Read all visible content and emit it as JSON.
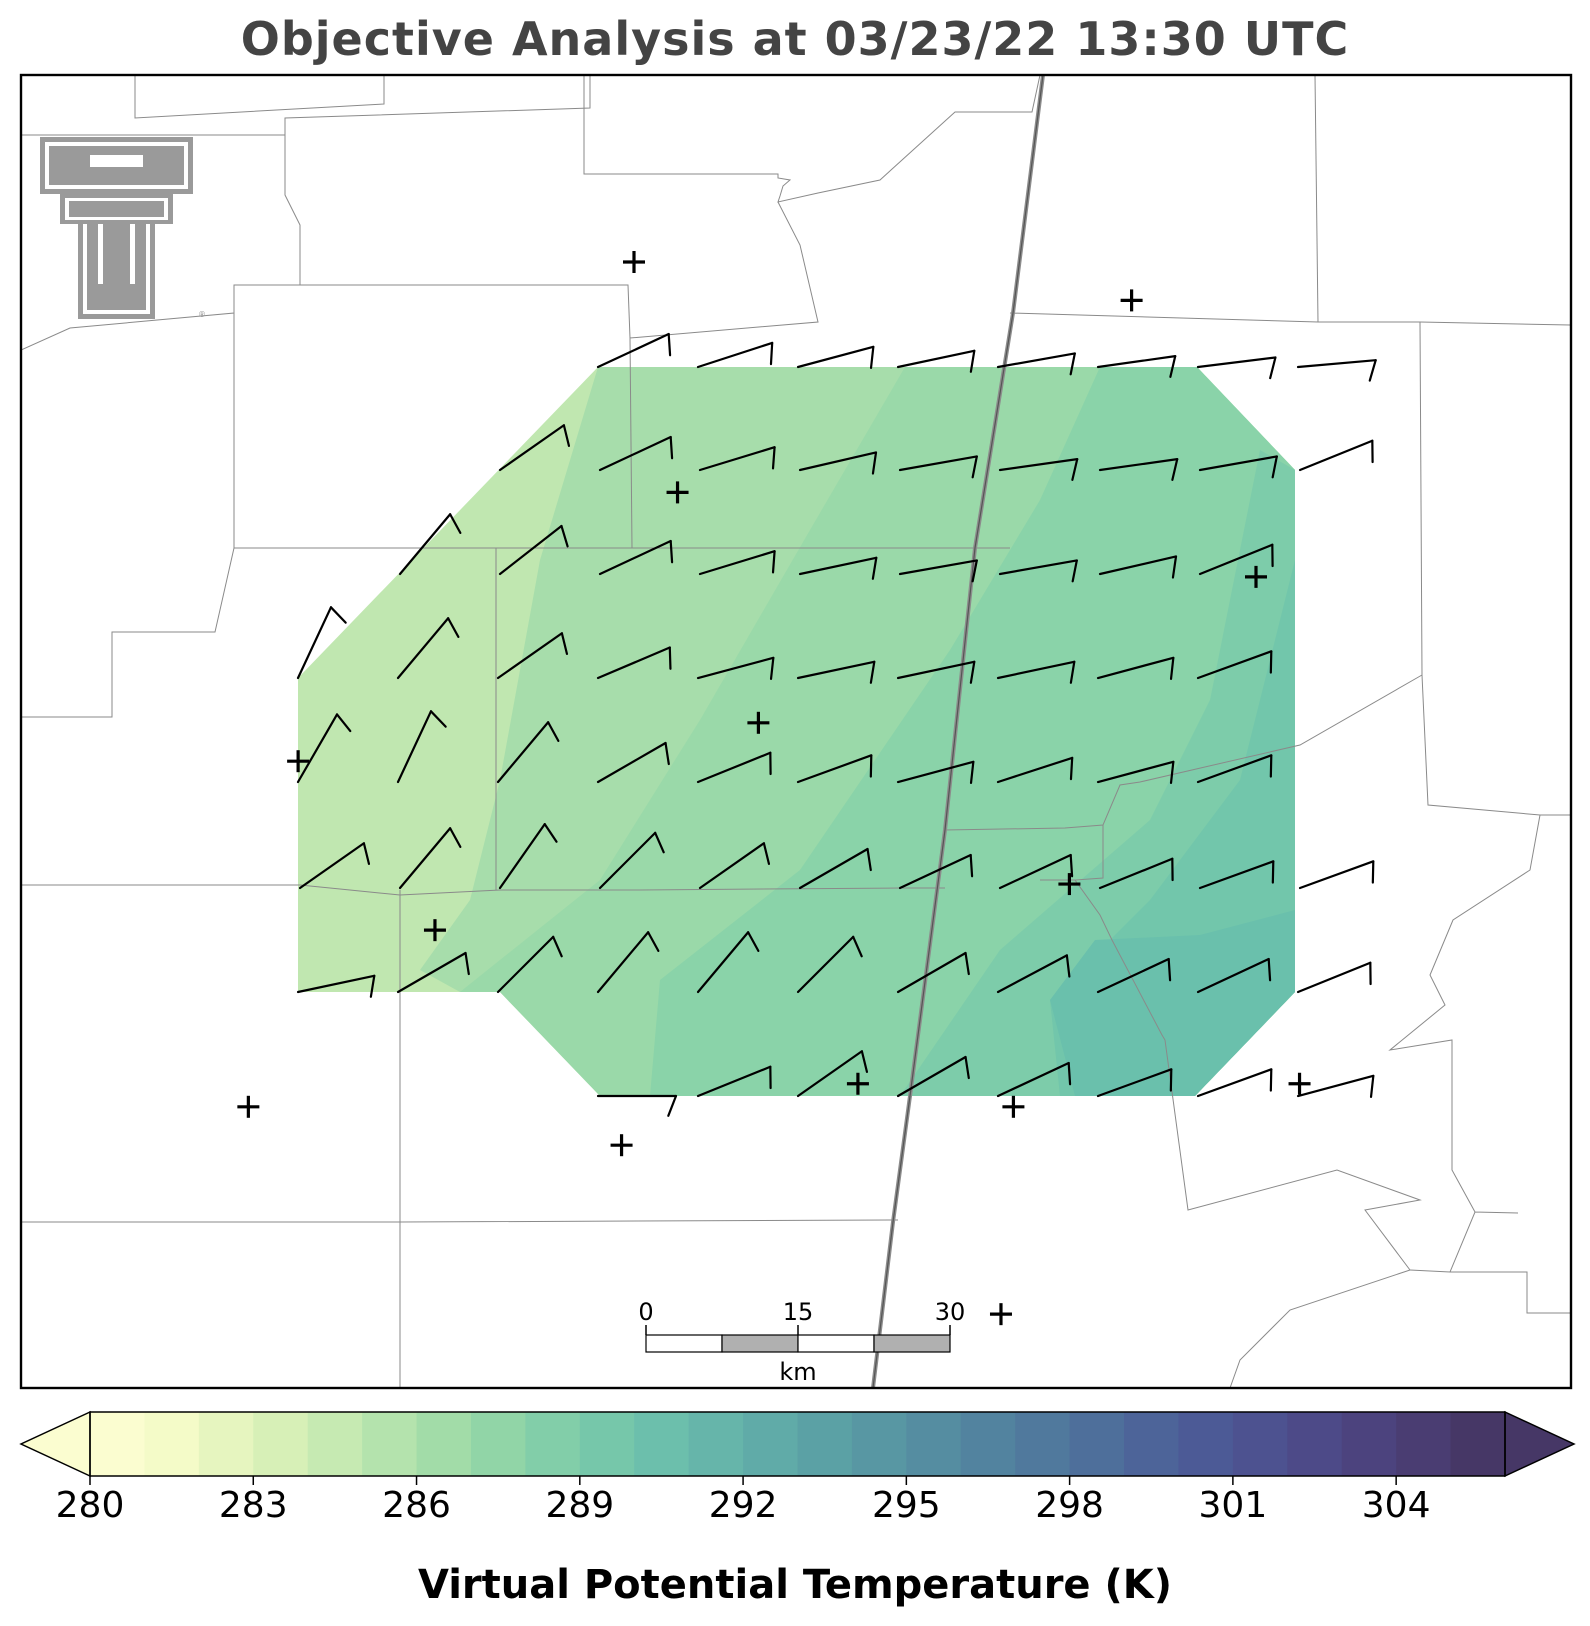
{
  "title": "Objective Analysis at 03/23/22 13:30 UTC",
  "colorbar": {
    "label": "Virtual Potential Temperature (K)",
    "min": 280,
    "max": 306,
    "ticks": [
      280,
      283,
      286,
      289,
      292,
      295,
      298,
      301,
      304
    ],
    "colors": [
      "#fbfdd0",
      "#f4fbc8",
      "#e6f5bf",
      "#d7f0b7",
      "#c6eab2",
      "#b4e3ad",
      "#a2dca8",
      "#91d5a7",
      "#82cea9",
      "#76c7aa",
      "#6cbfac",
      "#66b5aa",
      "#60aba8",
      "#5ba1a5",
      "#5897a3",
      "#558da1",
      "#52839f",
      "#50799d",
      "#4e6f9b",
      "#4d6499",
      "#4c5a96",
      "#4d5290",
      "#4d4a88",
      "#4c437e",
      "#4a3d72",
      "#463766"
    ],
    "extend": "both"
  },
  "scale_bar": {
    "unit": "km",
    "labels": [
      "0",
      "15",
      "30"
    ]
  },
  "logo": {
    "name": "texas-tech-double-t-logo"
  },
  "stations": [
    {
      "lon": -101.8,
      "lat": 35.2
    },
    {
      "lon": -101.0,
      "lat": 35.15
    },
    {
      "lon": -100.8,
      "lat": 34.79
    },
    {
      "lon": -101.73,
      "lat": 34.9
    },
    {
      "lon": -102.34,
      "lat": 34.55
    },
    {
      "lon": -101.6,
      "lat": 34.6
    },
    {
      "lon": -102.12,
      "lat": 34.33
    },
    {
      "lon": -101.1,
      "lat": 34.39
    },
    {
      "lon": -102.42,
      "lat": 34.1
    },
    {
      "lon": -101.44,
      "lat": 34.13
    },
    {
      "lon": -101.82,
      "lat": 34.05
    },
    {
      "lon": -101.19,
      "lat": 34.1
    },
    {
      "lon": -100.73,
      "lat": 34.13
    },
    {
      "lon": -101.21,
      "lat": 33.83
    }
  ],
  "wind_barbs": [
    {
      "row": 0,
      "dirs": [
        245,
        252,
        255,
        258,
        260,
        262,
        263,
        265
      ],
      "speeds": [
        10,
        10,
        10,
        10,
        10,
        10,
        10,
        10
      ]
    },
    {
      "row": 1,
      "dirs": [
        235,
        245,
        253,
        257,
        260,
        262,
        262,
        260,
        248
      ],
      "speeds": [
        10,
        10,
        10,
        10,
        10,
        10,
        10,
        10,
        10
      ]
    },
    {
      "row": 2,
      "dirs": [
        220,
        232,
        245,
        253,
        258,
        260,
        260,
        257,
        248
      ],
      "speeds": [
        10,
        10,
        10,
        10,
        10,
        10,
        10,
        10,
        10
      ]
    },
    {
      "row": 3,
      "dirs": [
        205,
        220,
        235,
        247,
        255,
        258,
        258,
        258,
        255,
        250
      ],
      "speeds": [
        10,
        10,
        10,
        10,
        10,
        10,
        10,
        10,
        10,
        10
      ]
    },
    {
      "row": 4,
      "dirs": [
        210,
        205,
        220,
        240,
        248,
        250,
        255,
        252,
        255,
        250
      ],
      "speeds": [
        10,
        10,
        10,
        10,
        10,
        10,
        10,
        10,
        10,
        10
      ]
    },
    {
      "row": 5,
      "dirs": [
        235,
        220,
        215,
        225,
        235,
        240,
        245,
        245,
        248,
        250,
        250
      ],
      "speeds": [
        10,
        10,
        10,
        10,
        10,
        10,
        10,
        10,
        10,
        10,
        10
      ]
    },
    {
      "row": 6,
      "dirs": [
        258,
        240,
        225,
        220,
        220,
        225,
        240,
        242,
        245,
        245,
        248
      ],
      "speeds": [
        10,
        10,
        10,
        10,
        10,
        10,
        10,
        10,
        10,
        10,
        10
      ]
    },
    {
      "row": 7,
      "dirs": [
        270,
        248,
        235,
        240,
        245,
        250,
        250,
        255
      ],
      "speeds": [
        10,
        10,
        10,
        10,
        10,
        10,
        10,
        10
      ]
    }
  ]
}
